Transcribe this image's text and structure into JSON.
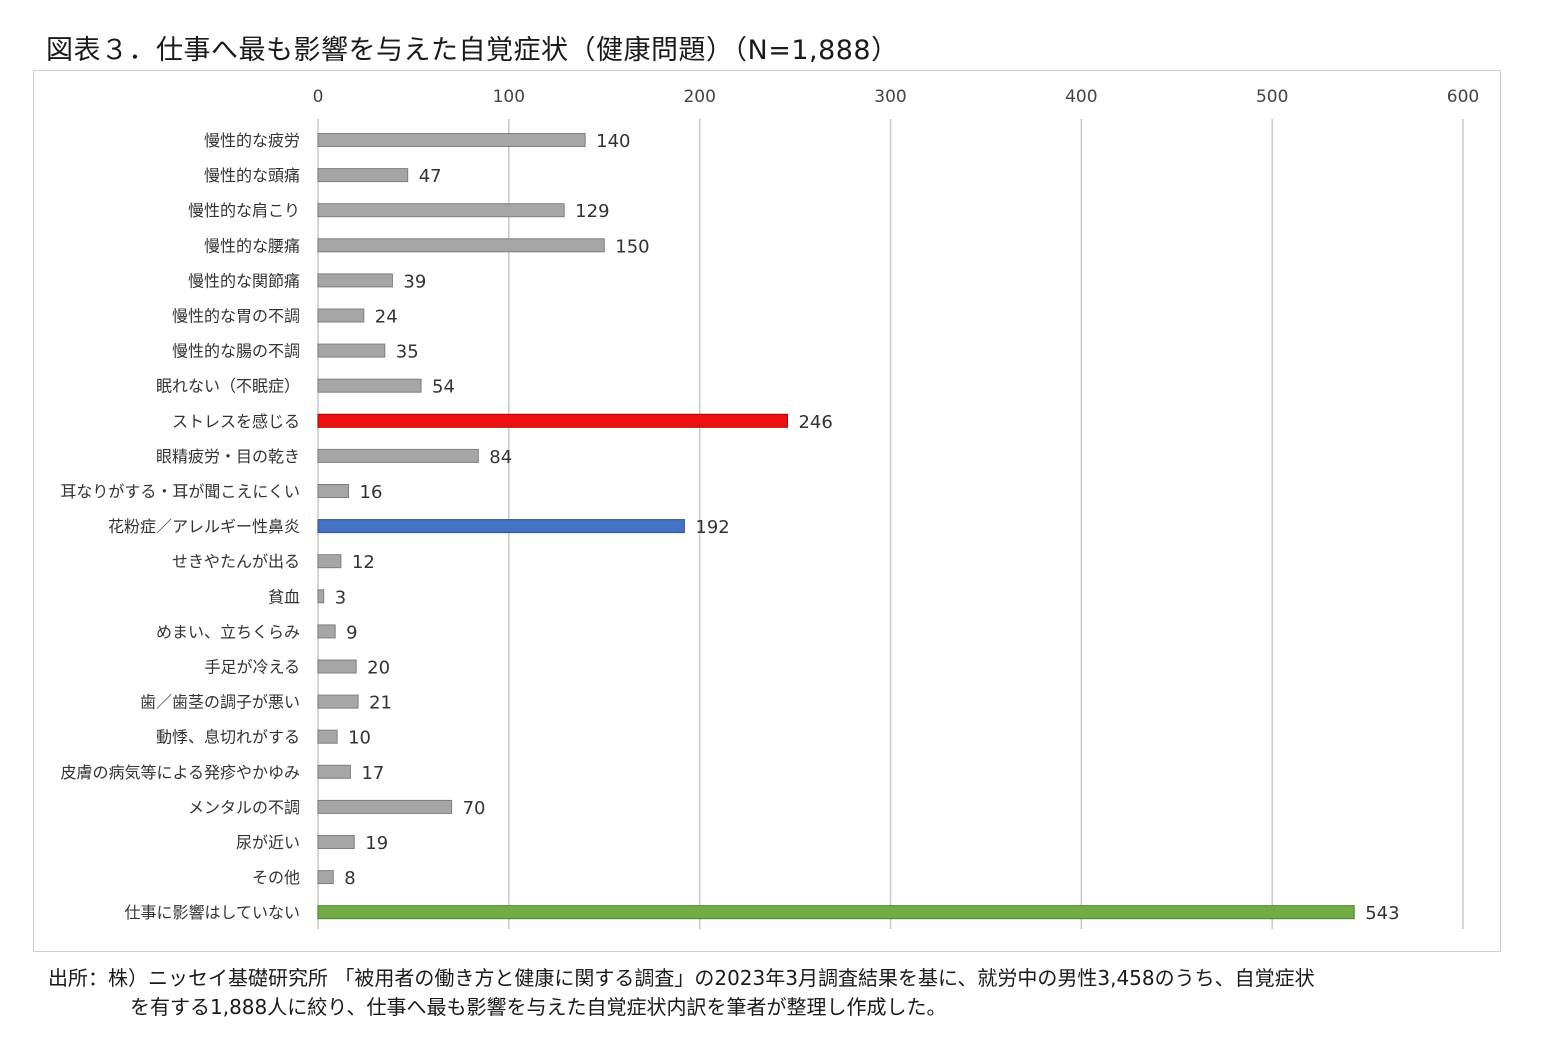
{
  "title": "図表３．仕事へ最も影響を与えた自覚症状（健康問題）（N=1,888）",
  "chart_data": {
    "type": "bar",
    "orientation": "horizontal",
    "xlim": [
      0,
      600
    ],
    "x_ticks": [
      0,
      100,
      200,
      300,
      400,
      500,
      600
    ],
    "grid": true,
    "axis_position": "top",
    "categories": [
      "慢性的な疲労",
      "慢性的な頭痛",
      "慢性的な肩こり",
      "慢性的な腰痛",
      "慢性的な関節痛",
      "慢性的な胃の不調",
      "慢性的な腸の不調",
      "眠れない（不眠症）",
      "ストレスを感じる",
      "眼精疲労・目の乾き",
      "耳なりがする・耳が聞こえにくい",
      "花粉症／アレルギー性鼻炎",
      "せきやたんが出る",
      "貧血",
      "めまい、立ちくらみ",
      "手足が冷える",
      "歯／歯茎の調子が悪い",
      "動悸、息切れがする",
      "皮膚の病気等による発疹やかゆみ",
      "メンタルの不調",
      "尿が近い",
      "その他",
      "仕事に影響はしていない"
    ],
    "values": [
      140,
      47,
      129,
      150,
      39,
      24,
      35,
      54,
      246,
      84,
      16,
      192,
      12,
      3,
      9,
      20,
      21,
      10,
      17,
      70,
      19,
      8,
      543
    ],
    "highlight": {
      "ストレスを感じる": "#ee1111",
      "花粉症／アレルギー性鼻炎": "#4472c4",
      "仕事に影響はしていない": "#70ad47"
    },
    "default_color": "#a6a6a6"
  },
  "note": {
    "line1": "出所：株）ニッセイ基礎研究所 「被用者の働き方と健康に関する調査」の2023年3月調査結果を基に、就労中の男性3,458のうち、自覚症状",
    "line2": "を有する1,888人に絞り、仕事へ最も影響を与えた自覚症状内訳を筆者が整理し作成した。"
  }
}
